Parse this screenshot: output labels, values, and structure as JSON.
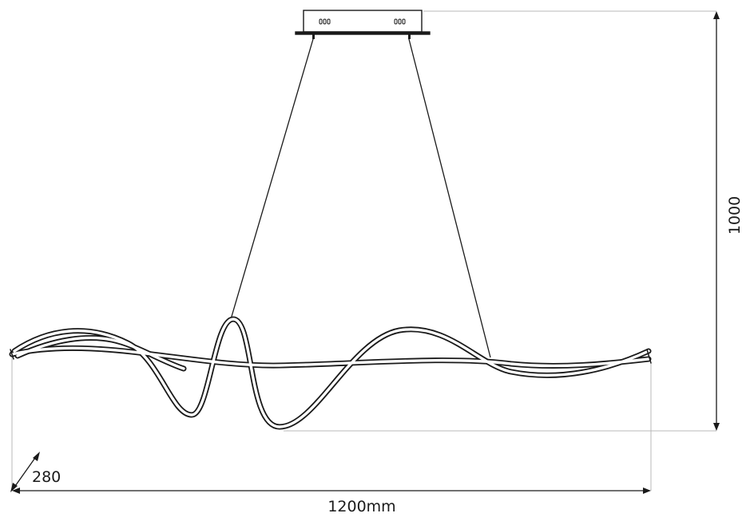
{
  "dimensions": {
    "height_label": "1000",
    "width_label": "1200mm",
    "depth_label": "280"
  },
  "colors": {
    "line": "#1a1a1a",
    "guide": "#b8b8b8",
    "canopy_fill": "#ffffff"
  }
}
